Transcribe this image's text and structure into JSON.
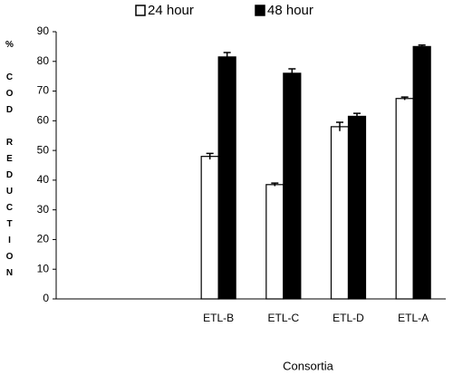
{
  "chart_data": {
    "type": "bar",
    "y_label": "% COD REDUCTION",
    "x_label": "Consortia",
    "categories": [
      null,
      null,
      "ETL-B",
      "ETL-C",
      "ETL-D",
      "ETL-A"
    ],
    "series": [
      {
        "name": "24 hour",
        "color": "#ffffff",
        "values": [
          0,
          0,
          48,
          38.5,
          58,
          67.5
        ],
        "errors": [
          0,
          0,
          1,
          0.5,
          1.5,
          0.5
        ]
      },
      {
        "name": "48 hour",
        "color": "#000000",
        "values": [
          0,
          0,
          81.5,
          76,
          61.5,
          85
        ],
        "errors": [
          0,
          0,
          1.5,
          1.5,
          1,
          0.5
        ]
      }
    ],
    "ylim": [
      0,
      90
    ],
    "yticks": [
      0,
      10,
      20,
      30,
      40,
      50,
      60,
      70,
      80,
      90
    ],
    "grid": false
  }
}
